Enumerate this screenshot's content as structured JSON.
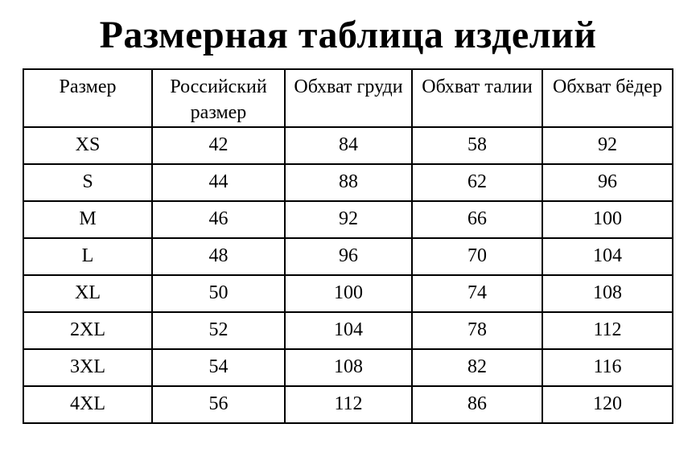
{
  "page": {
    "title": "Размерная таблица изделий",
    "background_color": "#ffffff",
    "text_color": "#000000",
    "border_color": "#000000"
  },
  "table": {
    "columns": [
      "Размер",
      "Российский размер",
      "Обхват груди",
      "Обхват талии",
      "Обхват бёдер"
    ],
    "rows": [
      {
        "size": "XS",
        "russian_size": "42",
        "chest": "84",
        "waist": "58",
        "hips": "92"
      },
      {
        "size": "S",
        "russian_size": "44",
        "chest": "88",
        "waist": "62",
        "hips": "96"
      },
      {
        "size": "M",
        "russian_size": "46",
        "chest": "92",
        "waist": "66",
        "hips": "100"
      },
      {
        "size": "L",
        "russian_size": "48",
        "chest": "96",
        "waist": "70",
        "hips": "104"
      },
      {
        "size": "XL",
        "russian_size": "50",
        "chest": "100",
        "waist": "74",
        "hips": "108"
      },
      {
        "size": "2XL",
        "russian_size": "52",
        "chest": "104",
        "waist": "78",
        "hips": "112"
      },
      {
        "size": "3XL",
        "russian_size": "54",
        "chest": "108",
        "waist": "82",
        "hips": "116"
      },
      {
        "size": "4XL",
        "russian_size": "56",
        "chest": "112",
        "waist": "86",
        "hips": "120"
      }
    ]
  }
}
